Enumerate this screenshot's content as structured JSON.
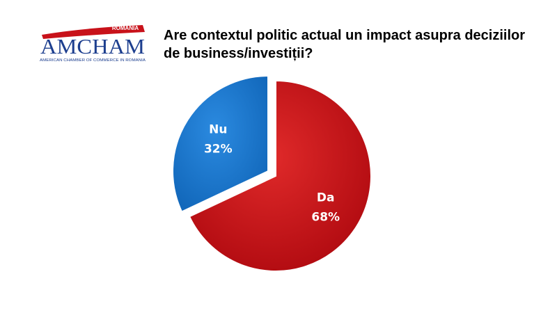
{
  "logo": {
    "country": "ROMANIA",
    "name": "AMCHAM",
    "subtitle": "AMERICAN CHAMBER OF COMMERCE IN ROMANIA"
  },
  "chart_data": {
    "type": "pie",
    "title": "Are contextul politic actual un impact asupra deciziilor de business/investiții?",
    "categories": [
      "Da",
      "Nu"
    ],
    "values": [
      68,
      32
    ],
    "value_labels": [
      "68%",
      "32%"
    ],
    "colors": [
      "#c8121a",
      "#1c7ad0"
    ],
    "exploded": [
      false,
      true
    ]
  }
}
